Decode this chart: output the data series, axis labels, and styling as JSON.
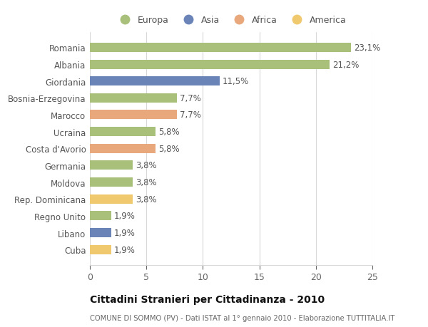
{
  "categories": [
    "Romania",
    "Albania",
    "Giordania",
    "Bosnia-Erzegovina",
    "Marocco",
    "Ucraina",
    "Costa d'Avorio",
    "Germania",
    "Moldova",
    "Rep. Dominicana",
    "Regno Unito",
    "Libano",
    "Cuba"
  ],
  "values": [
    23.1,
    21.2,
    11.5,
    7.7,
    7.7,
    5.8,
    5.8,
    3.8,
    3.8,
    3.8,
    1.9,
    1.9,
    1.9
  ],
  "labels": [
    "23,1%",
    "21,2%",
    "11,5%",
    "7,7%",
    "7,7%",
    "5,8%",
    "5,8%",
    "3,8%",
    "3,8%",
    "3,8%",
    "1,9%",
    "1,9%",
    "1,9%"
  ],
  "colors": [
    "#a8c07a",
    "#a8c07a",
    "#6b84b8",
    "#a8c07a",
    "#e8a87c",
    "#a8c07a",
    "#e8a87c",
    "#a8c07a",
    "#a8c07a",
    "#f0c96e",
    "#a8c07a",
    "#6b84b8",
    "#f0c96e"
  ],
  "continent_labels": [
    "Europa",
    "Asia",
    "Africa",
    "America"
  ],
  "continent_colors": [
    "#a8c07a",
    "#6b84b8",
    "#e8a87c",
    "#f0c96e"
  ],
  "xlim": [
    0,
    25
  ],
  "xticks": [
    0,
    5,
    10,
    15,
    20,
    25
  ],
  "title": "Cittadini Stranieri per Cittadinanza - 2010",
  "subtitle": "COMUNE DI SOMMO (PV) - Dati ISTAT al 1° gennaio 2010 - Elaborazione TUTTITALIA.IT",
  "background_color": "#ffffff",
  "grid_color": "#d8d8d8",
  "bar_height": 0.55,
  "label_fontsize": 8.5,
  "ytick_fontsize": 8.5,
  "xtick_fontsize": 9
}
